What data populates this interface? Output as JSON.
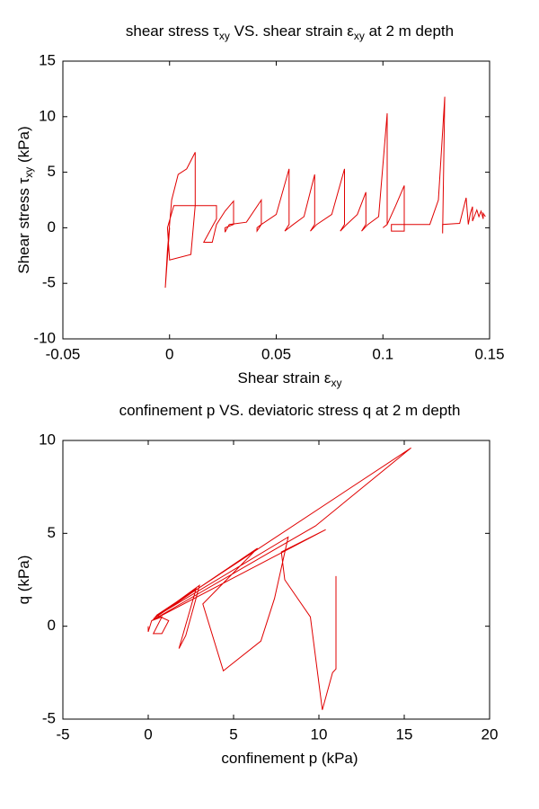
{
  "chart_data": [
    {
      "type": "line",
      "title": [
        "shear stress τ",
        "xy",
        " VS. shear strain ε",
        "xy",
        " at 2 m depth"
      ],
      "xlabel": [
        "Shear strain ε",
        "xy"
      ],
      "ylabel": [
        "Shear stress τ",
        "xy",
        " (kPa)"
      ],
      "xlim": [
        -0.05,
        0.15
      ],
      "xticks": [
        -0.05,
        0,
        0.05,
        0.1,
        0.15
      ],
      "ylim": [
        -10,
        15
      ],
      "yticks": [
        -10,
        -5,
        0,
        5,
        10,
        15
      ],
      "series": [
        {
          "color": "#e00000",
          "x": [
            0,
            -0.002,
            -0.001,
            0.001,
            0.004,
            0.008,
            0.012,
            0.012,
            0.01,
            0,
            -0.001,
            0.002,
            0.022,
            0.022,
            0.016,
            0.02,
            0.022,
            0.026,
            0.03,
            0.03,
            0.026,
            0.026,
            0.028,
            0.036,
            0.043,
            0.043,
            0.041,
            0.041,
            0.043,
            0.05,
            0.056,
            0.056,
            0.054,
            0.058,
            0.063,
            0.068,
            0.068,
            0.066,
            0.069,
            0.076,
            0.082,
            0.082,
            0.08,
            0.083,
            0.088,
            0.092,
            0.092,
            0.09,
            0.093,
            0.098,
            0.102,
            0.102,
            0.1,
            0.102,
            0.106,
            0.11,
            0.11,
            0.104,
            0.104,
            0.122,
            0.126,
            0.129,
            0.128,
            0.128,
            0.136,
            0.139,
            0.14,
            0.141,
            0.142,
            0.142,
            0.144,
            0.145,
            0.146,
            0.147,
            0.147,
            0.148
          ],
          "values": [
            0,
            -5.4,
            -2,
            2.5,
            4.8,
            5.3,
            6.8,
            2,
            -2.4,
            -2.9,
            0,
            2,
            2,
            0.8,
            -1.3,
            -1.3,
            0.3,
            1.5,
            2.4,
            0.3,
            0,
            -0.4,
            0.3,
            0.5,
            2.5,
            0.3,
            0,
            -0.3,
            0.3,
            1.2,
            5.3,
            0.3,
            -0.3,
            0.3,
            1,
            4.8,
            0.3,
            -0.3,
            0.3,
            1.2,
            5.3,
            0.3,
            -0.3,
            0.3,
            1.2,
            3.2,
            0.3,
            -0.3,
            0.3,
            1,
            10.3,
            0.3,
            0,
            0.3,
            2,
            3.8,
            -0.3,
            -0.3,
            0.3,
            0.3,
            2.5,
            11.8,
            -0.5,
            0.3,
            0.4,
            2.7,
            0.3,
            1.3,
            1.9,
            0.6,
            1.6,
            1.0,
            1.5,
            0.8,
            1.3,
            1.0
          ]
        }
      ]
    },
    {
      "type": "line",
      "title": [
        "confinement p VS. deviatoric stress q at 2 m depth"
      ],
      "xlabel": [
        "confinement p (kPa)"
      ],
      "ylabel": [
        "q (kPa)"
      ],
      "xlim": [
        -5,
        20
      ],
      "xticks": [
        -5,
        0,
        5,
        10,
        15,
        20
      ],
      "ylim": [
        -5,
        10
      ],
      "yticks": [
        -5,
        0,
        5,
        10
      ],
      "series": [
        {
          "color": "#e00000",
          "x": [
            0,
            0,
            0.2,
            0.8,
            0.3,
            0.8,
            1.2,
            0.5,
            2.8,
            1.8,
            2.2,
            2.8,
            3,
            0.3,
            6.4,
            3.2,
            4.4,
            6.6,
            7.4,
            8.2,
            0.4,
            15.4,
            9.8,
            0.2,
            10.4,
            7.8,
            8,
            9.5,
            10.2,
            10.8,
            11,
            11
          ],
          "values": [
            0,
            -0.3,
            0.3,
            0.5,
            -0.4,
            -0.4,
            0.3,
            0.6,
            2,
            -1.2,
            -0.5,
            1.5,
            2.2,
            0.4,
            4.2,
            1.2,
            -2.4,
            -0.8,
            1.5,
            4.8,
            0.5,
            9.6,
            5.4,
            0.3,
            5.2,
            4,
            2.5,
            0.5,
            -4.5,
            -2.5,
            -2.3,
            2.7
          ]
        }
      ]
    }
  ]
}
